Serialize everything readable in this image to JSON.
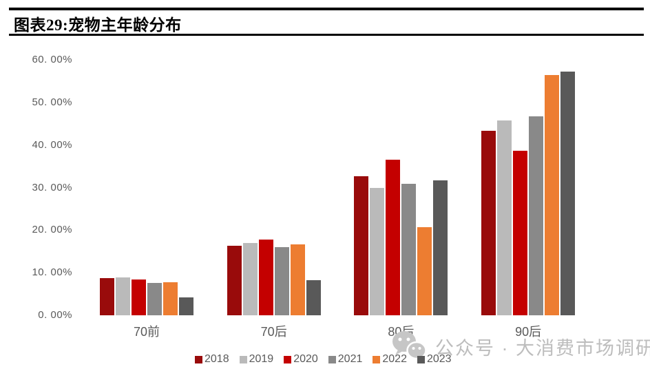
{
  "header": {
    "title": "图表29:宠物主年龄分布"
  },
  "chart_data": {
    "type": "bar",
    "title": "图表29:宠物主年龄分布",
    "categories": [
      "70前",
      "70后",
      "80后",
      "90后"
    ],
    "series": [
      {
        "name": "2018",
        "color": "#990B0B",
        "values": [
          8.8,
          16.4,
          32.6,
          43.4
        ]
      },
      {
        "name": "2019",
        "color": "#BABABA",
        "values": [
          8.9,
          17.0,
          29.9,
          45.7
        ]
      },
      {
        "name": "2020",
        "color": "#C40000",
        "values": [
          8.4,
          17.8,
          36.6,
          38.7
        ]
      },
      {
        "name": "2021",
        "color": "#898989",
        "values": [
          7.6,
          16.0,
          30.9,
          46.7
        ]
      },
      {
        "name": "2022",
        "color": "#ED7D31",
        "values": [
          7.8,
          16.6,
          20.7,
          56.5
        ]
      },
      {
        "name": "2023",
        "color": "#595959",
        "values": [
          4.2,
          8.3,
          31.7,
          57.3
        ]
      }
    ],
    "ylim": [
      0,
      60
    ],
    "y_tick_values": [
      60,
      50,
      40,
      30,
      20,
      10,
      0
    ],
    "y_ticks": [
      "60. 00%",
      "50. 00%",
      "40. 00%",
      "30. 00%",
      "20. 00%",
      "10. 00%",
      "0. 00%"
    ],
    "grid": false,
    "legend_position": "bottom"
  },
  "watermark": {
    "icon": "wechat-icon",
    "text": "公众号 · 大消费市场调研"
  }
}
